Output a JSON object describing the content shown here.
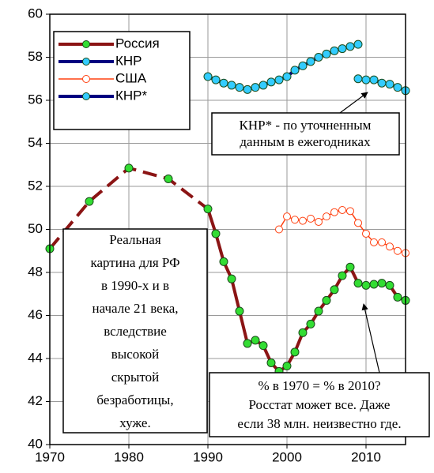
{
  "chart_data": {
    "type": "line",
    "xlim": [
      1970,
      2015
    ],
    "xticks": [
      1970,
      1980,
      1990,
      2000,
      2010
    ],
    "ylim": [
      40,
      60
    ],
    "yticks": [
      40,
      42,
      44,
      46,
      48,
      50,
      52,
      54,
      56,
      58,
      60
    ],
    "grid": true,
    "legend": "upper left",
    "series": [
      {
        "name": "Россия",
        "color": "#8b1414",
        "marker_color": "#33dd33",
        "x": [
          1970,
          1975,
          1980,
          1985,
          1990,
          1991,
          1992,
          1993,
          1994,
          1995,
          1996,
          1997,
          1998,
          1999,
          2000,
          2001,
          2002,
          2003,
          2004,
          2005,
          2006,
          2007,
          2008,
          2009,
          2010,
          2011,
          2012,
          2013,
          2014,
          2015
        ],
        "values": [
          49.1,
          51.3,
          52.85,
          52.35,
          50.95,
          49.8,
          48.5,
          47.7,
          46.2,
          44.7,
          44.85,
          44.6,
          43.8,
          43.4,
          43.65,
          44.3,
          45.2,
          45.6,
          46.2,
          46.7,
          47.2,
          47.85,
          48.25,
          47.5,
          47.4,
          47.45,
          47.5,
          47.4,
          46.85,
          46.7
        ]
      },
      {
        "name": "КНР",
        "color": "#000080",
        "marker_color": "#33ccff",
        "x": [
          1990,
          1991,
          1992,
          1993,
          1994,
          1995,
          1996,
          1997,
          1998,
          1999,
          2000,
          2001,
          2002,
          2003,
          2004,
          2005,
          2006,
          2007,
          2008,
          2009
        ],
        "values": [
          57.1,
          56.95,
          56.8,
          56.7,
          56.6,
          56.5,
          56.6,
          56.7,
          56.85,
          56.95,
          57.1,
          57.4,
          57.6,
          57.8,
          58.0,
          58.15,
          58.3,
          58.4,
          58.5,
          58.6
        ]
      },
      {
        "name": "США",
        "color": "#ff4010",
        "marker_color": "#ffffff",
        "x": [
          1999,
          2000,
          2001,
          2002,
          2003,
          2004,
          2005,
          2006,
          2007,
          2008,
          2009,
          2010,
          2011,
          2012,
          2013,
          2014,
          2015
        ],
        "values": [
          50.0,
          50.6,
          50.45,
          50.4,
          50.5,
          50.35,
          50.6,
          50.8,
          50.9,
          50.85,
          50.3,
          49.8,
          49.4,
          49.4,
          49.2,
          49.0,
          48.9
        ]
      },
      {
        "name": "КНР*",
        "color": "#000080",
        "marker_color": "#33ccff",
        "x": [
          2009,
          2010,
          2011,
          2012,
          2013,
          2014,
          2015
        ],
        "values": [
          57.0,
          56.95,
          56.95,
          56.8,
          56.75,
          56.6,
          56.45
        ]
      }
    ],
    "annotations": [
      [
        "КНР* - по уточненным",
        "данным в ежегодниках"
      ],
      [
        "Реальная",
        "картина для РФ",
        "в 1990-х и в",
        "начале 21 века,",
        "вследствие",
        "высокой",
        "скрытой",
        "безработицы,",
        "хуже."
      ],
      [
        "% в 1970 = % в 2010?",
        "Росстат может все. Даже",
        "если 38 млн. неизвестно где."
      ]
    ]
  }
}
